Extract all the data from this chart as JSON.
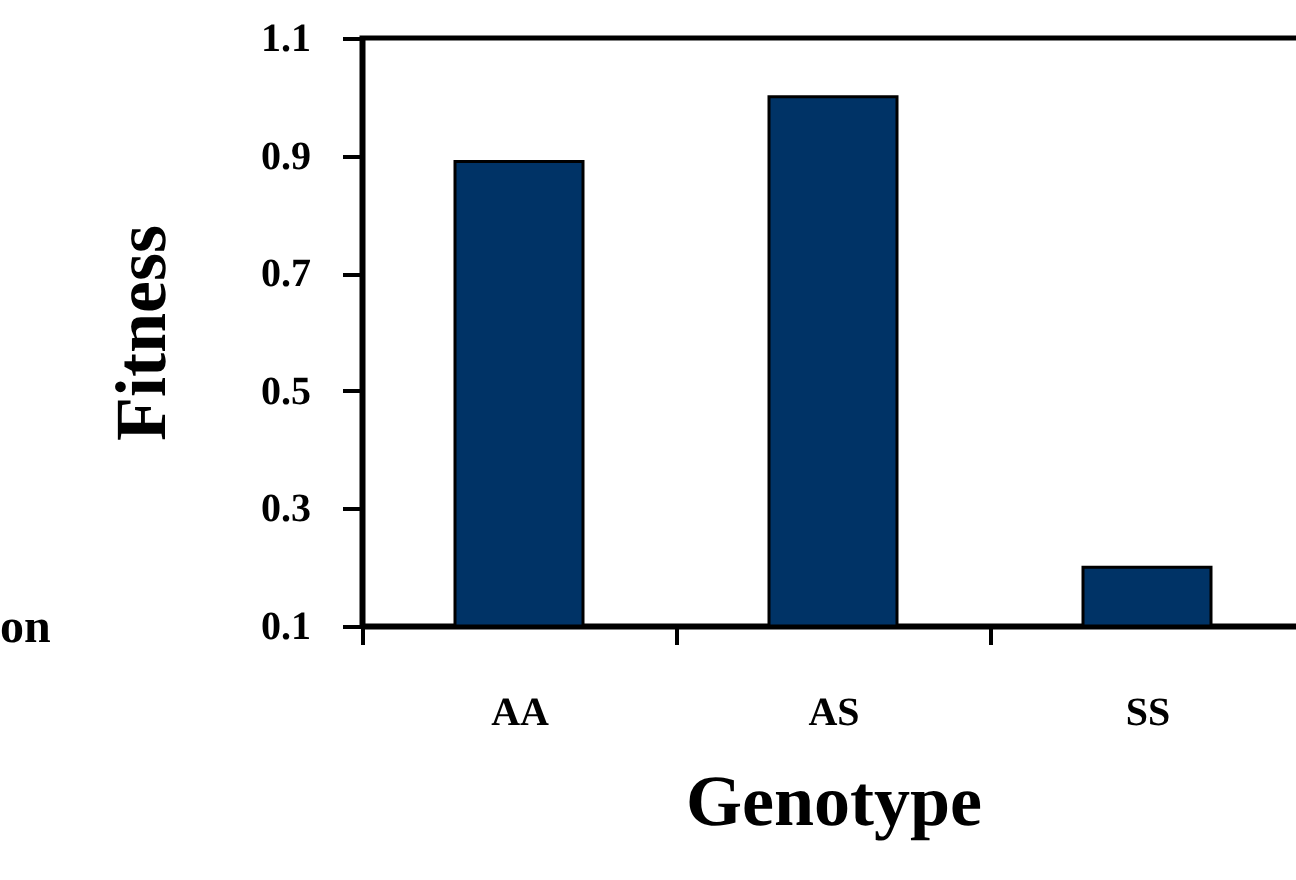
{
  "chart_data": {
    "type": "bar",
    "xlabel": "Genotype",
    "ylabel": "Fitness",
    "categories": [
      "AA",
      "AS",
      "SS"
    ],
    "values": [
      0.89,
      1.0,
      0.2
    ],
    "color": "#003366",
    "ylim": [
      0.1,
      1.1
    ],
    "yticks": [
      0.1,
      0.3,
      0.5,
      0.7,
      0.9,
      1.1
    ],
    "grid": false,
    "annotations": [
      "on"
    ]
  }
}
